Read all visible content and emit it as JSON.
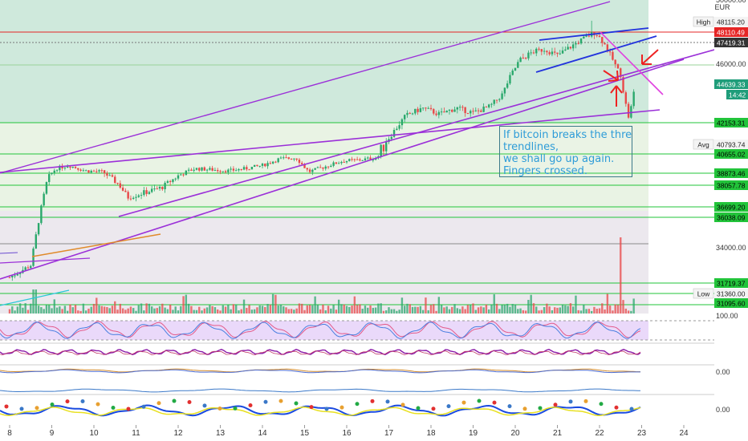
{
  "currency": "EUR",
  "annotation": {
    "lines": [
      "If bitcoin breaks the three",
      "trendlines,",
      "we shall go up again.",
      "Fingers crossed."
    ]
  },
  "colors": {
    "bg_upper": "#cfe9dc",
    "bg_mid": "#e9f3e4",
    "bg_lower": "#ece8ee",
    "hline_green": "#22c43a",
    "hline_red": "#e52525",
    "trend_purple": "#9b30d8",
    "trend_blue": "#2233dd",
    "trend_magenta": "#e040e0",
    "arrow_red": "#ee2222",
    "up": "#2aa86c",
    "down": "#e94848",
    "label_green": "#22c43a",
    "label_red": "#e52525",
    "label_gray": "#555555",
    "label_teal": "#1f9d7a"
  },
  "chart_data": {
    "type": "candlestick",
    "title": "",
    "x_ticks": [
      "8",
      "9",
      "10",
      "11",
      "12",
      "13",
      "14",
      "15",
      "16",
      "17",
      "18",
      "19",
      "20",
      "21",
      "22",
      "23",
      "24"
    ],
    "y_axis_top_label": "50000.00",
    "y_ticks": [
      "46000.00",
      "34000.00",
      "100.00",
      "0.00",
      "0.00"
    ],
    "price_labels": [
      {
        "label": "High",
        "value": "48115.20",
        "style": "high"
      },
      {
        "label": "",
        "value": "48110.49",
        "style": "red"
      },
      {
        "label": "",
        "value": "47419.31",
        "style": "dark"
      },
      {
        "label": "",
        "value": "44639.33",
        "style": "teal"
      },
      {
        "label": "",
        "value": "14:42",
        "style": "teal"
      },
      {
        "label": "",
        "value": "42153.31",
        "style": "green"
      },
      {
        "label": "Avg",
        "value": "40793.74",
        "style": "avg"
      },
      {
        "label": "",
        "value": "40655.02",
        "style": "green"
      },
      {
        "label": "",
        "value": "38873.46",
        "style": "green"
      },
      {
        "label": "",
        "value": "38057.78",
        "style": "green"
      },
      {
        "label": "",
        "value": "36699.20",
        "style": "green"
      },
      {
        "label": "",
        "value": "36038.09",
        "style": "green"
      },
      {
        "label": "",
        "value": "31719.37",
        "style": "green"
      },
      {
        "label": "Low",
        "value": "31360.00",
        "style": "low"
      },
      {
        "label": "",
        "value": "31095.60",
        "style": "green"
      }
    ],
    "horizontal_levels": [
      48110.49,
      47419.31,
      46000,
      42153.31,
      40655.02,
      38873.46,
      38057.78,
      36699.2,
      36038.09,
      31719.37,
      31360.0,
      31095.6
    ],
    "price_path_approx": [
      [
        8.0,
        32100
      ],
      [
        8.5,
        32900
      ],
      [
        8.7,
        36000
      ],
      [
        8.9,
        38500
      ],
      [
        9.1,
        39300
      ],
      [
        9.4,
        39600
      ],
      [
        9.8,
        39100
      ],
      [
        10.2,
        39000
      ],
      [
        10.6,
        38100
      ],
      [
        10.8,
        37300
      ],
      [
        11.2,
        37600
      ],
      [
        11.6,
        37900
      ],
      [
        12.0,
        38700
      ],
      [
        12.4,
        39300
      ],
      [
        12.8,
        39200
      ],
      [
        13.2,
        39100
      ],
      [
        13.6,
        39300
      ],
      [
        14.0,
        39600
      ],
      [
        14.4,
        40200
      ],
      [
        14.8,
        40300
      ],
      [
        15.1,
        39000
      ],
      [
        15.5,
        39500
      ],
      [
        15.9,
        40000
      ],
      [
        16.3,
        40100
      ],
      [
        16.7,
        40300
      ],
      [
        17.0,
        41200
      ],
      [
        17.4,
        42600
      ],
      [
        17.8,
        43100
      ],
      [
        18.2,
        42700
      ],
      [
        18.6,
        43100
      ],
      [
        19.0,
        42800
      ],
      [
        19.4,
        43200
      ],
      [
        19.7,
        44000
      ],
      [
        19.9,
        45300
      ],
      [
        20.1,
        46300
      ],
      [
        20.4,
        46800
      ],
      [
        20.7,
        47000
      ],
      [
        21.0,
        46600
      ],
      [
        21.4,
        47300
      ],
      [
        21.7,
        47800
      ],
      [
        21.9,
        48100
      ],
      [
        22.1,
        47400
      ],
      [
        22.3,
        46400
      ],
      [
        22.5,
        45300
      ],
      [
        22.6,
        43600
      ],
      [
        22.7,
        42400
      ],
      [
        22.8,
        43900
      ],
      [
        22.85,
        44639
      ]
    ]
  }
}
